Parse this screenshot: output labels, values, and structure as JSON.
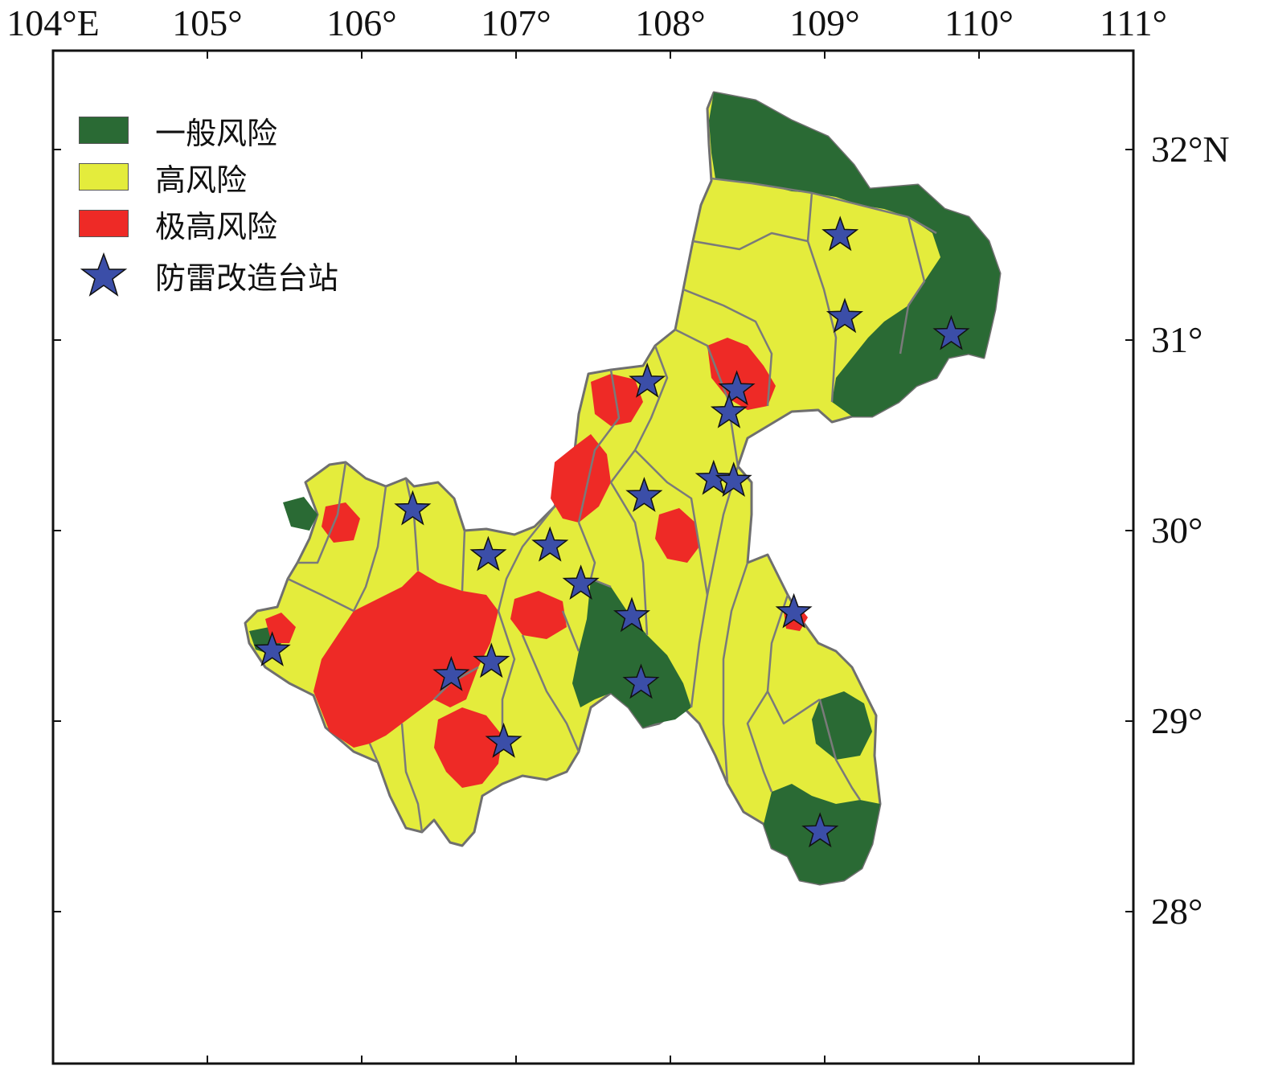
{
  "map": {
    "lon_ticks": [
      {
        "value": 104,
        "label": "104°E"
      },
      {
        "value": 105,
        "label": "105°"
      },
      {
        "value": 106,
        "label": "106°"
      },
      {
        "value": 107,
        "label": "107°"
      },
      {
        "value": 108,
        "label": "108°"
      },
      {
        "value": 109,
        "label": "109°"
      },
      {
        "value": 110,
        "label": "110°"
      },
      {
        "value": 111,
        "label": "111°"
      }
    ],
    "lat_ticks": [
      {
        "value": 32,
        "label": "32°N"
      },
      {
        "value": 31,
        "label": "31°"
      },
      {
        "value": 30,
        "label": "30°"
      },
      {
        "value": 29,
        "label": "29°"
      },
      {
        "value": 28,
        "label": "28°"
      }
    ],
    "colors": {
      "general_risk": "#2a6a34",
      "high_risk": "#e4ec3c",
      "extreme_risk": "#ee2a26",
      "station_star": "#3b4ea8",
      "boundary": "#6f6f6f"
    }
  },
  "legend": {
    "items": [
      {
        "label": "一般风险",
        "swatch": "#2a6a34",
        "kind": "box"
      },
      {
        "label": "高风险",
        "swatch": "#e4ec3c",
        "kind": "box"
      },
      {
        "label": "极高风险",
        "swatch": "#ee2a26",
        "kind": "box"
      },
      {
        "label": "防雷改造台站",
        "swatch": "#3b4ea8",
        "kind": "star-icon"
      }
    ]
  },
  "stations": [
    {
      "lon": 109.1,
      "lat": 31.55
    },
    {
      "lon": 109.13,
      "lat": 31.12
    },
    {
      "lon": 109.82,
      "lat": 31.03
    },
    {
      "lon": 107.85,
      "lat": 30.78
    },
    {
      "lon": 108.43,
      "lat": 30.74
    },
    {
      "lon": 108.38,
      "lat": 30.62
    },
    {
      "lon": 108.28,
      "lat": 30.27
    },
    {
      "lon": 108.41,
      "lat": 30.26
    },
    {
      "lon": 107.83,
      "lat": 30.18
    },
    {
      "lon": 106.33,
      "lat": 30.11
    },
    {
      "lon": 106.82,
      "lat": 29.87
    },
    {
      "lon": 107.22,
      "lat": 29.92
    },
    {
      "lon": 107.42,
      "lat": 29.72
    },
    {
      "lon": 107.75,
      "lat": 29.55
    },
    {
      "lon": 108.8,
      "lat": 29.57
    },
    {
      "lon": 105.42,
      "lat": 29.37
    },
    {
      "lon": 106.58,
      "lat": 29.24
    },
    {
      "lon": 106.84,
      "lat": 29.31
    },
    {
      "lon": 107.81,
      "lat": 29.2
    },
    {
      "lon": 106.92,
      "lat": 28.89
    },
    {
      "lon": 108.97,
      "lat": 28.42
    }
  ]
}
